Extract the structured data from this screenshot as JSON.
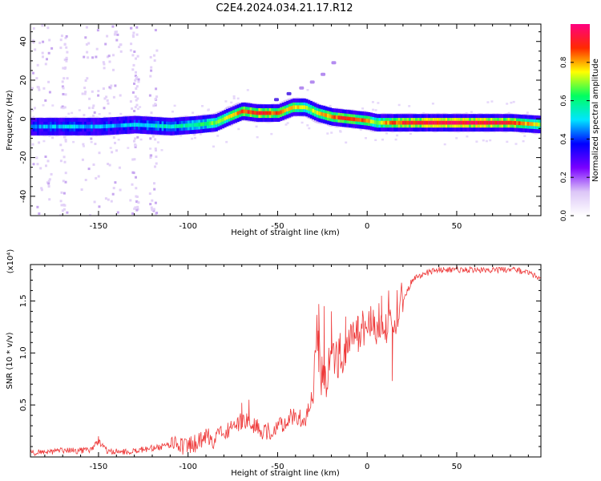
{
  "figure_title": "C2E4.2024.034.21.17.R12",
  "colors": {
    "axis": "#000000",
    "snr_line": "#ee3a3a",
    "background": "#ffffff"
  },
  "chart_data": [
    {
      "type": "heatmap",
      "name": "spectrogram",
      "title": "C2E4.2024.034.21.17.R12",
      "xlabel": "Height of straight line (km)",
      "ylabel": "Frequency (Hz)",
      "xlim": [
        -188,
        97
      ],
      "ylim": [
        -50,
        49
      ],
      "xticks": [
        -150,
        -100,
        -50,
        0,
        50
      ],
      "yticks": [
        -40,
        -20,
        0,
        20,
        40
      ],
      "colorbar": {
        "label": "Normalized spectral amplitude",
        "range": [
          0,
          1
        ],
        "ticks": [
          "0.0",
          "0.2",
          "0.4",
          "0.6",
          "0.8"
        ],
        "colormap": [
          "#ffffff",
          "#dcc6f7",
          "#7a00ff",
          "#0000ff",
          "#00e5ff",
          "#00ff60",
          "#ffff00",
          "#ff2a00",
          "#ff0080"
        ]
      },
      "ridge": {
        "x": [
          -188,
          -170,
          -150,
          -130,
          -110,
          -95,
          -85,
          -78,
          -70,
          -62,
          -50,
          -42,
          -35,
          -28,
          -20,
          -10,
          0,
          5,
          10,
          20,
          40,
          60,
          80,
          97
        ],
        "freq": [
          -4,
          -4,
          -4,
          -3,
          -4,
          -3,
          -2,
          1,
          4,
          3,
          3,
          6,
          6,
          3,
          1,
          0,
          -1,
          -2,
          -2,
          -2,
          -2,
          -2,
          -2,
          -3
        ],
        "amplitude": [
          0.45,
          0.5,
          0.45,
          0.5,
          0.55,
          0.6,
          0.7,
          0.75,
          0.85,
          0.9,
          0.85,
          0.8,
          0.7,
          0.75,
          0.85,
          0.9,
          0.8,
          0.7,
          0.8,
          0.9,
          0.95,
          0.95,
          0.9,
          0.7
        ]
      },
      "secondary_trace": {
        "x": [
          -52,
          -45,
          -38,
          -32,
          -26,
          -20
        ],
        "freq": [
          10,
          13,
          16,
          19,
          23,
          29
        ]
      }
    },
    {
      "type": "line",
      "name": "snr",
      "xlabel": "Height of straight line (km)",
      "ylabel": "SNR (10 * v/v)",
      "y_multiplier": "(x10⁴)",
      "xlim": [
        -188,
        97
      ],
      "ylim": [
        0,
        18.5
      ],
      "xticks": [
        -150,
        -100,
        -50,
        0,
        50
      ],
      "yticks": [
        5,
        10,
        15
      ],
      "ytick_labels": [
        "0.5",
        "1.0",
        "1.5"
      ],
      "series": [
        {
          "name": "SNR",
          "x": [
            -188,
            -170,
            -155,
            -150,
            -145,
            -135,
            -125,
            -115,
            -105,
            -100,
            -95,
            -90,
            -85,
            -80,
            -75,
            -70,
            -65,
            -60,
            -55,
            -50,
            -45,
            -40,
            -35,
            -30,
            -28,
            -25,
            -20,
            -15,
            -10,
            -5,
            0,
            5,
            10,
            15,
            20,
            25,
            30,
            35,
            40,
            50,
            60,
            70,
            80,
            90,
            97
          ],
          "y": [
            0.4,
            0.6,
            0.6,
            1.5,
            0.5,
            0.5,
            0.7,
            1.0,
            1.2,
            1.0,
            1.4,
            2.0,
            1.5,
            2.5,
            3.0,
            3.5,
            3.5,
            2.5,
            2.5,
            3.0,
            3.5,
            4.0,
            3.5,
            6.0,
            12.0,
            7.0,
            9.0,
            10.0,
            11.0,
            12.0,
            12.0,
            12.5,
            13.0,
            13.5,
            15.0,
            17.0,
            17.5,
            17.8,
            18.0,
            18.0,
            18.0,
            18.0,
            18.0,
            17.8,
            17.0
          ],
          "spikes": [
            {
              "x": -150,
              "y": 2.0
            },
            {
              "x": -70,
              "y": 5.2
            },
            {
              "x": -66,
              "y": 5.5
            },
            {
              "x": -27,
              "y": 14.7
            },
            {
              "x": -24,
              "y": 14.5
            },
            {
              "x": -20,
              "y": 14.0
            },
            {
              "x": -12,
              "y": 13.5
            },
            {
              "x": -5,
              "y": 13.5
            },
            {
              "x": 2,
              "y": 14.5
            },
            {
              "x": 8,
              "y": 15.5
            },
            {
              "x": 12,
              "y": 16.0
            },
            {
              "x": 14,
              "y": 7.3
            }
          ]
        }
      ]
    }
  ]
}
